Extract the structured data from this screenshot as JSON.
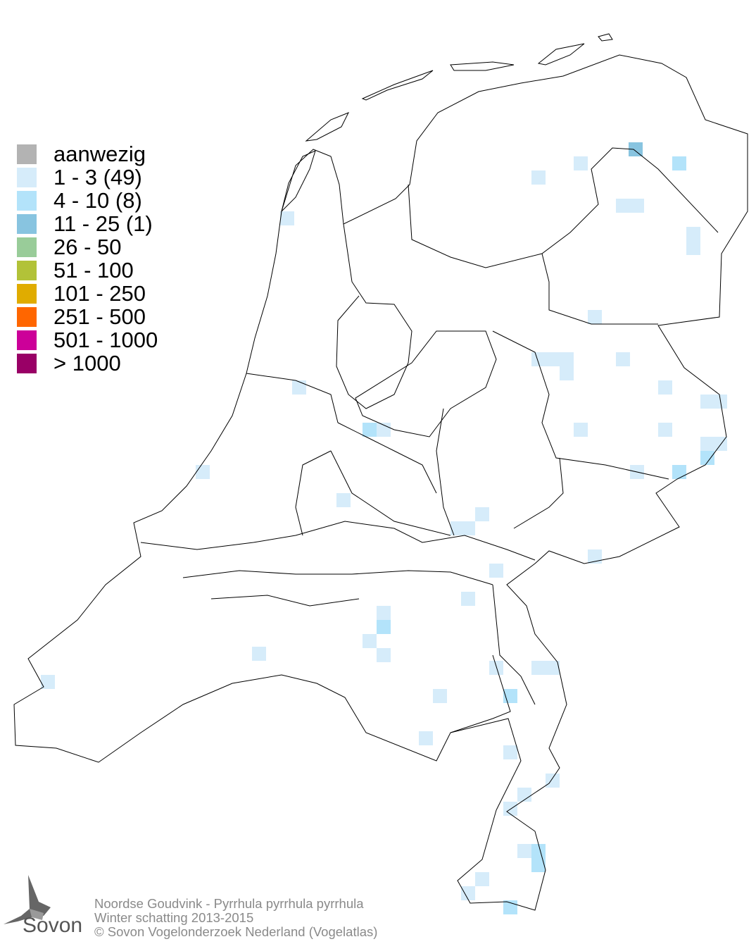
{
  "legend": {
    "items": [
      {
        "label": "aanwezig",
        "color": "#b3b3b3"
      },
      {
        "label": "1 - 3 (49)",
        "color": "#d6ecfa"
      },
      {
        "label": "4 - 10 (8)",
        "color": "#b3e3fa"
      },
      {
        "label": "11 - 25 (1)",
        "color": "#88c4e0"
      },
      {
        "label": "26 - 50",
        "color": "#99cc99"
      },
      {
        "label": "51 - 100",
        "color": "#b2c238"
      },
      {
        "label": "101 - 250",
        "color": "#e0ac00"
      },
      {
        "label": "251 - 500",
        "color": "#ff6600"
      },
      {
        "label": "501 - 1000",
        "color": "#cc0099"
      },
      {
        "label": "> 1000",
        "color": "#990066"
      }
    ]
  },
  "caption": {
    "species": "Noordse Goudvink - Pyrrhula pyrrhula pyrrhula",
    "season": "Winter schatting 2013-2015",
    "copyright": "© Sovon Vogelonderzoek Nederland (Vogelatlas)"
  },
  "logo": {
    "text": "Sovon"
  }
}
